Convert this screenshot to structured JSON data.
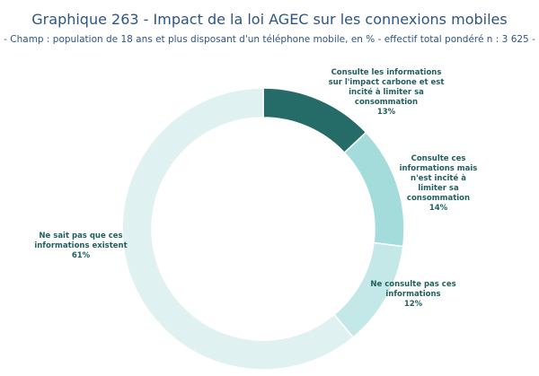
{
  "chart_data": {
    "type": "donut",
    "title": "Graphique 263 - Impact de la loi AGEC sur les connexions mobiles",
    "subtitle": "- Champ : population de 18 ans et plus disposant d'un téléphone mobile, en % - effectif total pondéré n : 3 625 -",
    "categories": [
      "Consulte les informations sur l'impact carbone et est incité à limiter sa consommation",
      "Consulte ces informations mais n'est incité à limiter sa consommation",
      "Ne consulte pas ces informations",
      "Ne sait pas que ces informations existent"
    ],
    "values": [
      13,
      14,
      12,
      61
    ],
    "value_labels": [
      "13%",
      "14%",
      "12%",
      "61%"
    ],
    "colors": [
      "#256b68",
      "#a3dcda",
      "#c4e8e7",
      "#e0f1f1"
    ]
  }
}
